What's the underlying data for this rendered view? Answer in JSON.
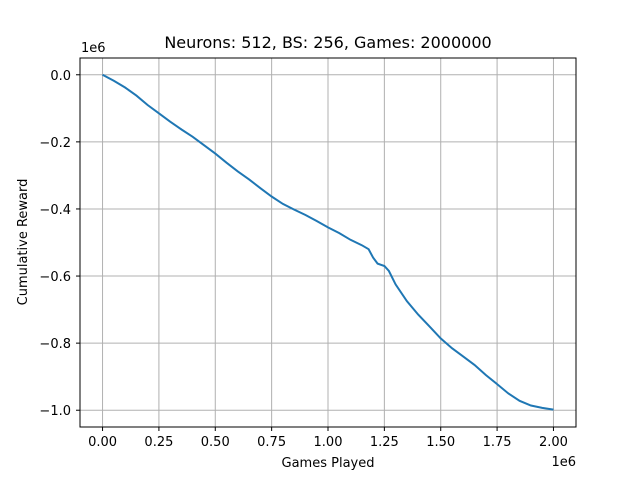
{
  "chart_data": {
    "type": "line",
    "title": "Neurons: 512, BS: 256, Games: 2000000",
    "xlabel": "Games Played",
    "ylabel": "Cumulative Reward",
    "x_offset_label": "1e6",
    "y_offset_label": "1e6",
    "xlim": [
      -0.1,
      2.1
    ],
    "ylim": [
      -1.05,
      0.05
    ],
    "x_ticks": [
      0.0,
      0.25,
      0.5,
      0.75,
      1.0,
      1.25,
      1.5,
      1.75,
      2.0
    ],
    "x_tick_labels": [
      "0.00",
      "0.25",
      "0.50",
      "0.75",
      "1.00",
      "1.25",
      "1.50",
      "1.75",
      "2.00"
    ],
    "y_ticks": [
      0.0,
      -0.2,
      -0.4,
      -0.6,
      -0.8,
      -1.0
    ],
    "y_tick_labels": [
      "0.0",
      "−0.2",
      "−0.4",
      "−0.6",
      "−0.8",
      "−1.0"
    ],
    "grid": true,
    "line_color": "#1f77b4",
    "series": [
      {
        "x": [
          0.0,
          0.05,
          0.1,
          0.15,
          0.2,
          0.25,
          0.3,
          0.35,
          0.4,
          0.45,
          0.5,
          0.55,
          0.6,
          0.65,
          0.7,
          0.75,
          0.8,
          0.85,
          0.9,
          0.95,
          1.0,
          1.05,
          1.1,
          1.15,
          1.18,
          1.2,
          1.22,
          1.25,
          1.27,
          1.3,
          1.35,
          1.4,
          1.45,
          1.5,
          1.55,
          1.6,
          1.65,
          1.7,
          1.75,
          1.8,
          1.85,
          1.9,
          1.95,
          2.0
        ],
        "y": [
          0.0,
          -0.018,
          -0.038,
          -0.062,
          -0.09,
          -0.115,
          -0.14,
          -0.163,
          -0.185,
          -0.21,
          -0.235,
          -0.262,
          -0.288,
          -0.312,
          -0.338,
          -0.363,
          -0.385,
          -0.402,
          -0.418,
          -0.436,
          -0.455,
          -0.472,
          -0.492,
          -0.508,
          -0.52,
          -0.545,
          -0.563,
          -0.57,
          -0.585,
          -0.625,
          -0.675,
          -0.715,
          -0.75,
          -0.786,
          -0.815,
          -0.84,
          -0.865,
          -0.895,
          -0.922,
          -0.95,
          -0.972,
          -0.986,
          -0.993,
          -0.998
        ]
      }
    ]
  }
}
